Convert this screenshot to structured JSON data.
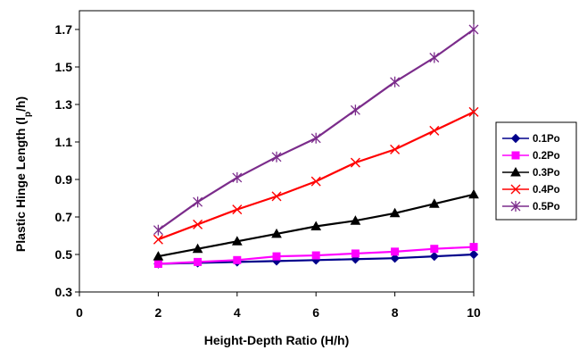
{
  "chart_data": {
    "type": "line",
    "xlabel": "Height-Depth Ratio (H/h)",
    "ylabel_main": "Plastic Hinge Length (l",
    "ylabel_sub": "p",
    "ylabel_end": "/h)",
    "xlim": [
      0,
      10
    ],
    "ylim": [
      0.3,
      1.8
    ],
    "x_ticks": [
      0,
      2,
      4,
      6,
      8,
      10
    ],
    "y_ticks": [
      0.3,
      0.5,
      0.7,
      0.9,
      1.1,
      1.3,
      1.5,
      1.7
    ],
    "x_tick_labels": [
      "0",
      "2",
      "4",
      "6",
      "8",
      "10"
    ],
    "y_tick_labels": [
      "0.3",
      "0.5",
      "0.7",
      "0.9",
      "1.1",
      "1.3",
      "1.5",
      "1.7"
    ],
    "x": [
      2,
      3,
      4,
      5,
      6,
      7,
      8,
      9,
      10
    ],
    "grid": false,
    "legend_position": "right",
    "series": [
      {
        "name": "0.1Po",
        "color": "#00008B",
        "marker": "diamond",
        "values": [
          0.45,
          0.455,
          0.46,
          0.465,
          0.47,
          0.475,
          0.48,
          0.49,
          0.5
        ]
      },
      {
        "name": "0.2Po",
        "color": "#FF00FF",
        "marker": "square",
        "values": [
          0.45,
          0.46,
          0.47,
          0.49,
          0.495,
          0.505,
          0.515,
          0.53,
          0.54
        ]
      },
      {
        "name": "0.3Po",
        "color": "#000000",
        "marker": "triangle",
        "values": [
          0.49,
          0.53,
          0.57,
          0.61,
          0.65,
          0.68,
          0.72,
          0.77,
          0.82
        ]
      },
      {
        "name": "0.4Po",
        "color": "#FF0000",
        "marker": "x",
        "values": [
          0.58,
          0.66,
          0.74,
          0.81,
          0.89,
          0.99,
          1.06,
          1.16,
          1.26
        ]
      },
      {
        "name": "0.5Po",
        "color": "#7B2C8B",
        "marker": "star",
        "values": [
          0.63,
          0.78,
          0.91,
          1.02,
          1.12,
          1.27,
          1.42,
          1.55,
          1.7
        ]
      }
    ]
  }
}
